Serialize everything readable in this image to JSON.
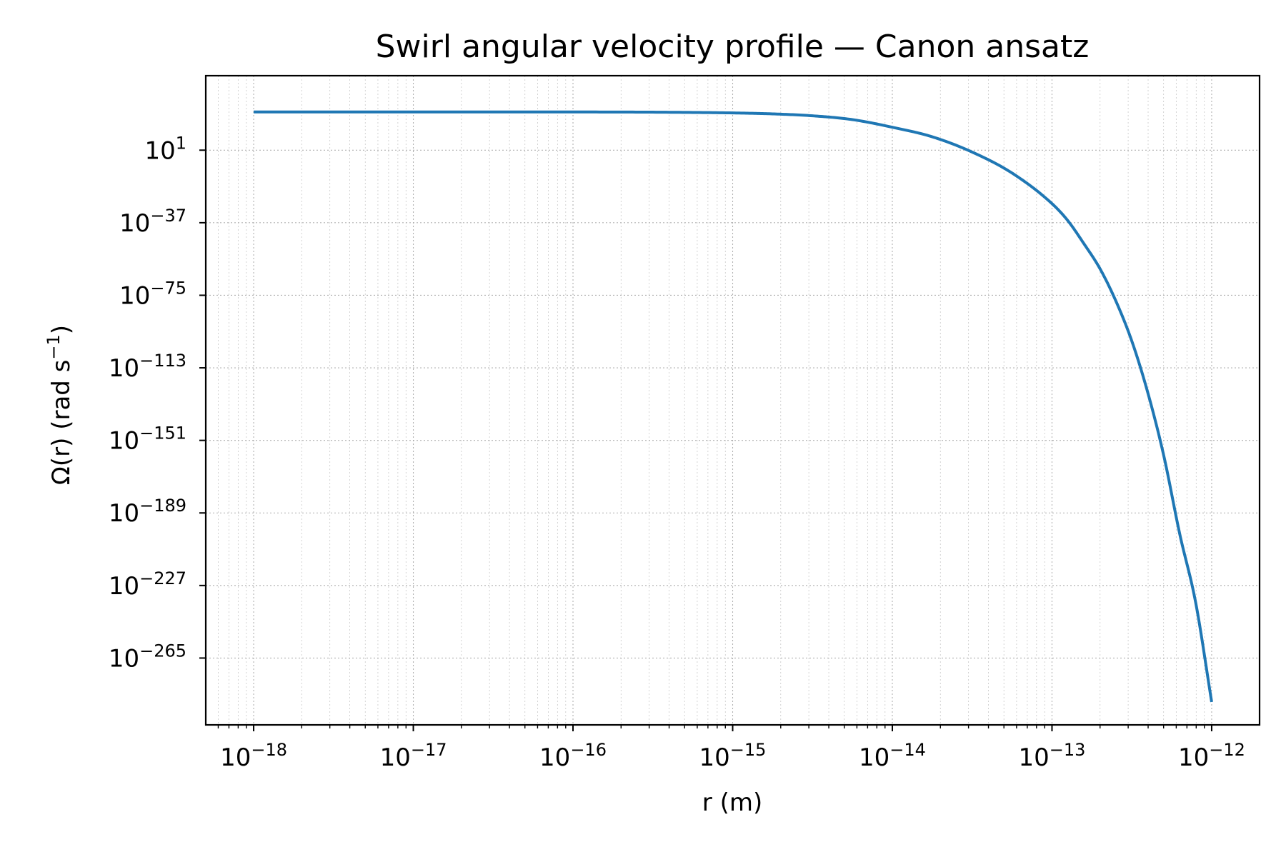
{
  "chart_data": {
    "type": "line",
    "title": "Swirl angular velocity profile — Canon ansatz",
    "xlabel": "r (m)",
    "ylabel_main": "Ω(r) (rad s",
    "ylabel_sup": "−1",
    "ylabel_close": ")",
    "x_scale": "log",
    "y_scale": "log",
    "xlim_log10": [
      -18.3,
      -11.7
    ],
    "ylim_log10": [
      -300.0,
      40.0
    ],
    "x_ticks": [
      {
        "base": "10",
        "exp": "−18",
        "log10": -18
      },
      {
        "base": "10",
        "exp": "−17",
        "log10": -17
      },
      {
        "base": "10",
        "exp": "−16",
        "log10": -16
      },
      {
        "base": "10",
        "exp": "−15",
        "log10": -15
      },
      {
        "base": "10",
        "exp": "−14",
        "log10": -14
      },
      {
        "base": "10",
        "exp": "−13",
        "log10": -13
      },
      {
        "base": "10",
        "exp": "−12",
        "log10": -12
      }
    ],
    "y_ticks": [
      {
        "base": "10",
        "exp": "1",
        "log10": 1
      },
      {
        "base": "10",
        "exp": "−37",
        "log10": -37
      },
      {
        "base": "10",
        "exp": "−75",
        "log10": -75
      },
      {
        "base": "10",
        "exp": "−113",
        "log10": -113
      },
      {
        "base": "10",
        "exp": "−151",
        "log10": -151
      },
      {
        "base": "10",
        "exp": "−189",
        "log10": -189
      },
      {
        "base": "10",
        "exp": "−227",
        "log10": -227
      },
      {
        "base": "10",
        "exp": "−265",
        "log10": -265
      }
    ],
    "grid": true,
    "series": [
      {
        "color": "#1f77b4",
        "x_log10": [
          -18.0,
          -17.5,
          -17.0,
          -16.5,
          -16.0,
          -15.5,
          -15.0,
          -14.75,
          -14.5,
          -14.25,
          -14.0,
          -13.75,
          -13.5,
          -13.25,
          -13.0,
          -12.9,
          -12.8,
          -12.7,
          -12.6,
          -12.5,
          -12.4,
          -12.3,
          -12.2,
          -12.1,
          -12.0
        ],
        "y_log10": [
          21.0,
          21.0,
          21.0,
          21.0,
          21.0,
          20.9,
          20.5,
          20.0,
          19.0,
          17.0,
          13.0,
          8.0,
          0.0,
          -11.0,
          -27.0,
          -36.0,
          -48.0,
          -61.0,
          -78.0,
          -99.0,
          -126.0,
          -159.0,
          -200.0,
          -236.0,
          -288.0
        ]
      }
    ]
  }
}
